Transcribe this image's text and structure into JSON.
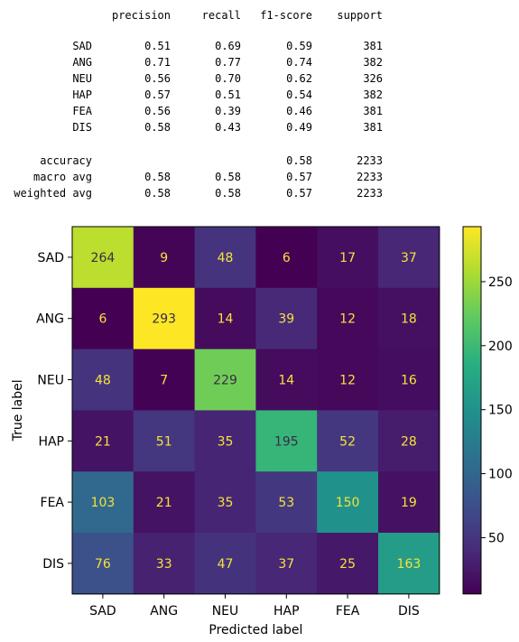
{
  "report": {
    "columns": [
      "precision",
      "recall",
      "f1-score",
      "support"
    ],
    "class_rows": [
      {
        "label": "SAD",
        "precision": "0.51",
        "recall": "0.69",
        "f1": "0.59",
        "support": "381"
      },
      {
        "label": "ANG",
        "precision": "0.71",
        "recall": "0.77",
        "f1": "0.74",
        "support": "382"
      },
      {
        "label": "NEU",
        "precision": "0.56",
        "recall": "0.70",
        "f1": "0.62",
        "support": "326"
      },
      {
        "label": "HAP",
        "precision": "0.57",
        "recall": "0.51",
        "f1": "0.54",
        "support": "382"
      },
      {
        "label": "FEA",
        "precision": "0.56",
        "recall": "0.39",
        "f1": "0.46",
        "support": "381"
      },
      {
        "label": "DIS",
        "precision": "0.58",
        "recall": "0.43",
        "f1": "0.49",
        "support": "381"
      }
    ],
    "summary_rows": [
      {
        "label": "accuracy",
        "precision": "",
        "recall": "",
        "f1": "0.58",
        "support": "2233"
      },
      {
        "label": "macro avg",
        "precision": "0.58",
        "recall": "0.58",
        "f1": "0.57",
        "support": "2233"
      },
      {
        "label": "weighted avg",
        "precision": "0.58",
        "recall": "0.58",
        "f1": "0.57",
        "support": "2233"
      }
    ]
  },
  "chart_data": {
    "type": "heatmap",
    "title": "",
    "xlabel": "Predicted label",
    "ylabel": "True label",
    "x_categories": [
      "SAD",
      "ANG",
      "NEU",
      "HAP",
      "FEA",
      "DIS"
    ],
    "y_categories": [
      "SAD",
      "ANG",
      "NEU",
      "HAP",
      "FEA",
      "DIS"
    ],
    "matrix": [
      [
        264,
        9,
        48,
        6,
        17,
        37
      ],
      [
        6,
        293,
        14,
        39,
        12,
        18
      ],
      [
        48,
        7,
        229,
        14,
        12,
        16
      ],
      [
        21,
        51,
        35,
        195,
        52,
        28
      ],
      [
        103,
        21,
        35,
        53,
        150,
        19
      ],
      [
        76,
        33,
        47,
        37,
        25,
        163
      ]
    ],
    "colormap": "viridis",
    "color_range": [
      6,
      293
    ],
    "colorbar_ticks": [
      50,
      100,
      150,
      200,
      250
    ]
  }
}
